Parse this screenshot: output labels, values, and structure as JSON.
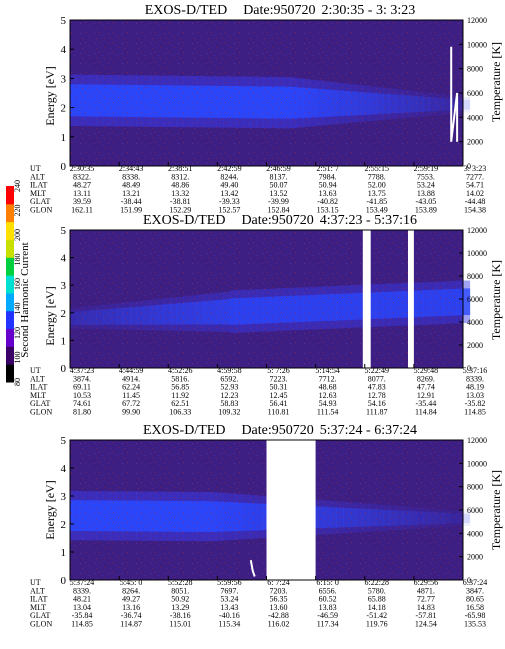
{
  "chart_data": [
    {
      "type": "heatmap",
      "title_prefix": "EXOS-D/TED",
      "title_date": "Date:950720",
      "title_range": "2:30:35 - 3: 3:23",
      "ylabel": "Energy [eV]",
      "ylabel_right": "Temperature [K]",
      "ylim": [
        0,
        5
      ],
      "ylim_right": [
        0,
        12000
      ],
      "yticks": [
        "0",
        "1",
        "2",
        "3",
        "4",
        "5"
      ],
      "yticks_right": [
        "0",
        "2000",
        "4000",
        "6000",
        "8000",
        "10000",
        "12000"
      ],
      "band": {
        "energy_center_start": 2.25,
        "energy_center_end": 2.1,
        "fade_fraction": 0.55
      },
      "gaps": [],
      "temperature_trace": [
        [
          0.97,
          9800
        ],
        [
          0.97,
          2000
        ],
        [
          0.985,
          6000
        ],
        [
          0.985,
          2000
        ]
      ],
      "row_labels": [
        "UT",
        "ALT",
        "ILAT",
        "MLT",
        "GLAT",
        "GLON"
      ],
      "columns": [
        [
          "2:30:35",
          "8322.",
          "48.27",
          "13.11",
          "39.59",
          "162.11"
        ],
        [
          "2:34:43",
          "8338.",
          "48.49",
          "13.21",
          "-38.44",
          "151.99"
        ],
        [
          "2:38:51",
          "8312.",
          "48.86",
          "13.32",
          "-38.81",
          "152.29"
        ],
        [
          "2:42:59",
          "8244.",
          "49.40",
          "13.42",
          "-39.33",
          "152.57"
        ],
        [
          "2:46:59",
          "8137.",
          "50.07",
          "13.52",
          "-39.99",
          "152.84"
        ],
        [
          "2:51: 7",
          "7984.",
          "50.94",
          "13.63",
          "-40.82",
          "153.15"
        ],
        [
          "2:55:15",
          "7788.",
          "52.00",
          "13.75",
          "-41.85",
          "153.49"
        ],
        [
          "2:59:19",
          "7553.",
          "53.24",
          "13.88",
          "-43.05",
          "153.89"
        ],
        [
          "3: 3:23",
          "7277.",
          "54.71",
          "14.02",
          "-44.48",
          "154.38"
        ]
      ]
    },
    {
      "type": "heatmap",
      "title_prefix": "EXOS-D/TED",
      "title_date": "Date:950720",
      "title_range": "4:37:23 - 5:37:16",
      "ylabel": "Energy [eV]",
      "ylabel_right": "Temperature [K]",
      "ylim": [
        0,
        5
      ],
      "ylim_right": [
        0,
        12000
      ],
      "yticks": [
        "0",
        "1",
        "2",
        "3",
        "4",
        "5"
      ],
      "yticks_right": [
        "0",
        "2000",
        "4000",
        "6000",
        "8000",
        "10000",
        "12000"
      ],
      "band": {
        "energy_center_start": 1.8,
        "energy_center_end": 2.4,
        "fade_fraction": -0.4
      },
      "gaps": [
        [
          0.745,
          0.765
        ],
        [
          0.86,
          0.875
        ]
      ],
      "temperature_trace": [],
      "row_labels": [
        "UT",
        "ALT",
        "ILAT",
        "MLT",
        "GLAT",
        "GLON"
      ],
      "columns": [
        [
          "4:37:23",
          "3874.",
          "69.11",
          "10.53",
          "74.61",
          "81.80"
        ],
        [
          "4:44:59",
          "4914.",
          "62.24",
          "11.45",
          "67.72",
          "99.90"
        ],
        [
          "4:52:26",
          "5816.",
          "56.85",
          "11.92",
          "62.51",
          "106.33"
        ],
        [
          "4:59:58",
          "6592.",
          "52.93",
          "12.23",
          "58.83",
          "109.32"
        ],
        [
          "5: 7:26",
          "7223.",
          "50.31",
          "12.45",
          "56.41",
          "110.81"
        ],
        [
          "5:14:54",
          "7712.",
          "48.68",
          "12.63",
          "54.93",
          "111.54"
        ],
        [
          "5:22:49",
          "8077.",
          "47.83",
          "12.78",
          "54.16",
          "111.87"
        ],
        [
          "5:29:48",
          "8269.",
          "47.74",
          "12.91",
          "-35.44",
          "114.84"
        ],
        [
          "5:37:16",
          "8339.",
          "48.19",
          "13.03",
          "-35.82",
          "114.85"
        ]
      ]
    },
    {
      "type": "heatmap",
      "title_prefix": "EXOS-D/TED",
      "title_date": "Date:950720",
      "title_range": "5:37:24 - 6:37:24",
      "ylabel": "Energy [eV]",
      "ylabel_right": "Temperature [K]",
      "ylim": [
        0,
        5
      ],
      "ylim_right": [
        0,
        12000
      ],
      "yticks": [
        "0",
        "1",
        "2",
        "3",
        "4",
        "5"
      ],
      "yticks_right": [
        "0",
        "2000",
        "4000",
        "6000",
        "8000",
        "10000",
        "12000"
      ],
      "band": {
        "energy_center_start": 2.3,
        "energy_center_end": 2.2,
        "fade_fraction": 0.35
      },
      "gaps": [
        [
          0.5,
          0.625
        ]
      ],
      "temperature_trace": [
        [
          0.46,
          1700
        ],
        [
          0.465,
          800
        ],
        [
          0.47,
          300
        ]
      ],
      "row_labels": [
        "UT",
        "ALT",
        "ILAT",
        "MLT",
        "GLAT",
        "GLON"
      ],
      "columns": [
        [
          "5:37:24",
          "8339.",
          "48.21",
          "13.04",
          "-35.84",
          "114.85"
        ],
        [
          "5:45: 0",
          "8264.",
          "49.27",
          "13.16",
          "-36.74",
          "114.87"
        ],
        [
          "5:52:28",
          "8051.",
          "50.92",
          "13.29",
          "-38.16",
          "115.01"
        ],
        [
          "5:59:56",
          "7697.",
          "53.24",
          "13.43",
          "-40.16",
          "115.34"
        ],
        [
          "6: 7:24",
          "7203.",
          "56.35",
          "13.60",
          "-42.88",
          "116.02"
        ],
        [
          "6:15: 0",
          "6556.",
          "60.52",
          "13.83",
          "-46.59",
          "117.34"
        ],
        [
          "6:22:28",
          "5780.",
          "65.88",
          "14.18",
          "-51.42",
          "119.76"
        ],
        [
          "6:29:56",
          "4871.",
          "72.77",
          "14.83",
          "-57.81",
          "124.54"
        ],
        [
          "6:37:24",
          "3847.",
          "80.65",
          "16.58",
          "-65.98",
          "135.53"
        ]
      ]
    }
  ],
  "colorbar": {
    "label": "Second Harmonic Current",
    "ticks": [
      "80",
      "100",
      "120",
      "140",
      "160",
      "180",
      "200",
      "220",
      "240"
    ],
    "colors": [
      "#000000",
      "#3a0066",
      "#6600cc",
      "#2233ff",
      "#00aaff",
      "#00e0d0",
      "#00d040",
      "#c8e000",
      "#ffe000",
      "#ff8000",
      "#ff0000"
    ]
  }
}
